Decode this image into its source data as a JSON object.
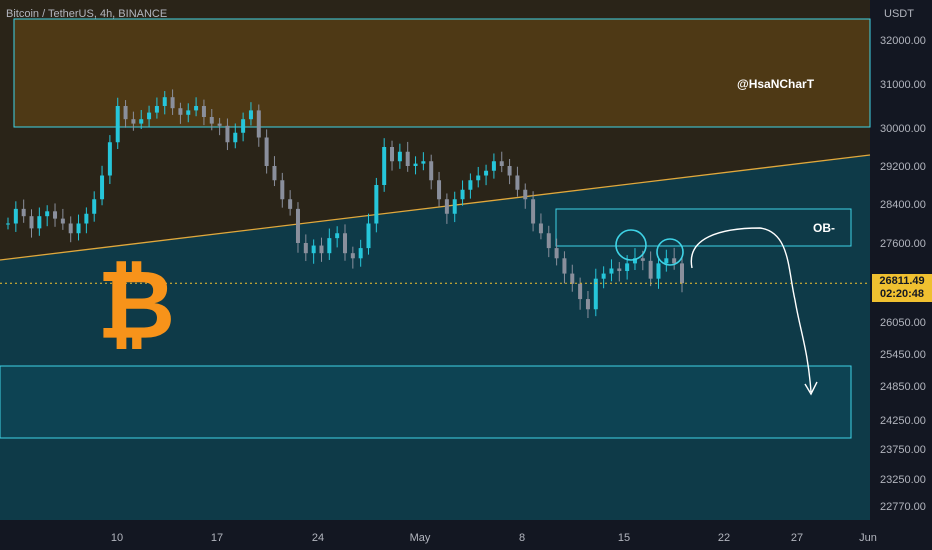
{
  "header": {
    "symbol": "Bitcoin / TetherUS, 4h, BINANCE",
    "unit": "USDT"
  },
  "chart_data": {
    "type": "candlestick",
    "title": "Bitcoin / TetherUS, 4h, BINANCE",
    "y_ticks": [
      "32000.00",
      "31000.00",
      "30000.00",
      "29200.00",
      "28400.00",
      "27600.00",
      "26050.00",
      "25450.00",
      "24850.00",
      "24250.00",
      "23750.00",
      "23250.00",
      "22770.00"
    ],
    "x_ticks": [
      "10",
      "17",
      "24",
      "May",
      "8",
      "15",
      "22",
      "27",
      "Jun"
    ],
    "current_price": "26811.49",
    "countdown": "02:20:48",
    "annotations": {
      "watermark": "@HsaNCharT",
      "ob_label": "OB-"
    },
    "colors": {
      "up": "#26c6da",
      "down": "#8a8f9c",
      "supply_fill": "#6b4a14",
      "demand_fill": "#0d4a5c",
      "trendline": "#e0a83c",
      "box_stroke": "#3fd3e6",
      "current_price": "#f0c030",
      "bitcoin_logo": "#f7931a"
    },
    "approx_closes": [
      28000,
      28300,
      28150,
      27900,
      28150,
      28250,
      28100,
      28000,
      27800,
      28000,
      28200,
      28500,
      29000,
      29700,
      30500,
      30200,
      30100,
      30200,
      30350,
      30500,
      30700,
      30450,
      30300,
      30400,
      30500,
      30250,
      30100,
      30050,
      29700,
      29900,
      30200,
      30400,
      29800,
      29200,
      28900,
      28500,
      28300,
      27600,
      27400,
      27550,
      27400,
      27700,
      27800,
      27400,
      27300,
      27500,
      28000,
      28800,
      29600,
      29300,
      29500,
      29200,
      29250,
      29300,
      28900,
      28500,
      28200,
      28500,
      28700,
      28900,
      29000,
      29100,
      29300,
      29200,
      29000,
      28700,
      28500,
      28000,
      27800,
      27500,
      27300,
      27000,
      26800,
      26500,
      26300,
      26900,
      27000,
      27100,
      27050,
      27200,
      27300,
      27250,
      26900,
      27200,
      27300,
      27200,
      26811
    ]
  }
}
